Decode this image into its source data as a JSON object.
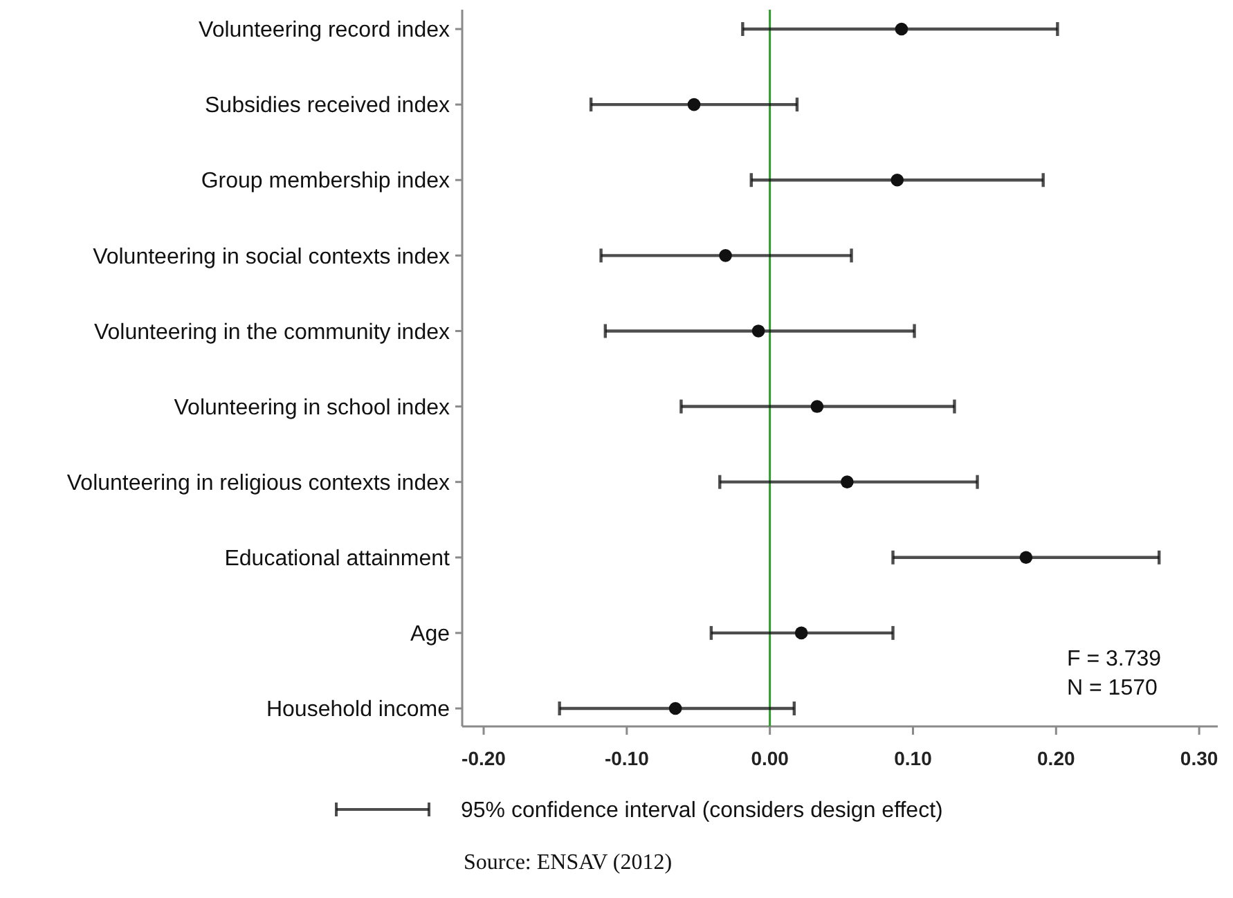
{
  "chart_data": {
    "type": "scatter",
    "orientation": "horizontal",
    "categories": [
      "Volunteering record index",
      "Subsidies received index",
      "Group membership index",
      "Volunteering in social contexts index",
      "Volunteering in the community index",
      "Volunteering in school index",
      "Volunteering in religious contexts index",
      "Educational attainment",
      "Age",
      "Household income"
    ],
    "series": [
      {
        "name": "95% confidence interval (considers design effect)",
        "color": "#111111",
        "values": [
          0.092,
          -0.053,
          0.089,
          -0.031,
          -0.008,
          0.033,
          0.054,
          0.179,
          0.022,
          -0.066
        ],
        "errors": [
          [
            -0.019,
            0.201
          ],
          [
            -0.125,
            0.019
          ],
          [
            -0.013,
            0.191
          ],
          [
            -0.118,
            0.057
          ],
          [
            -0.115,
            0.101
          ],
          [
            -0.062,
            0.129
          ],
          [
            -0.035,
            0.145
          ],
          [
            0.086,
            0.272
          ],
          [
            -0.041,
            0.086
          ],
          [
            -0.147,
            0.017
          ]
        ]
      }
    ],
    "xlim": [
      -0.215,
      0.313
    ],
    "xticks": [
      {
        "value": -0.2,
        "label": "-0.20"
      },
      {
        "value": -0.1,
        "label": "-0.10"
      },
      {
        "value": 0,
        "label": "0.00"
      },
      {
        "value": 0.1,
        "label": "0.10"
      },
      {
        "value": 0.2,
        "label": "0.20"
      },
      {
        "value": 0.3,
        "label": "0.30"
      }
    ],
    "ref_lines": [
      {
        "axis": "x",
        "value": 0,
        "color": "#2e9a2e"
      }
    ],
    "annotations": [
      "F = 3.739",
      "N = 1570",
      "Source: ENSAV (2012)"
    ],
    "legend": "bottom",
    "marker": "circle"
  }
}
